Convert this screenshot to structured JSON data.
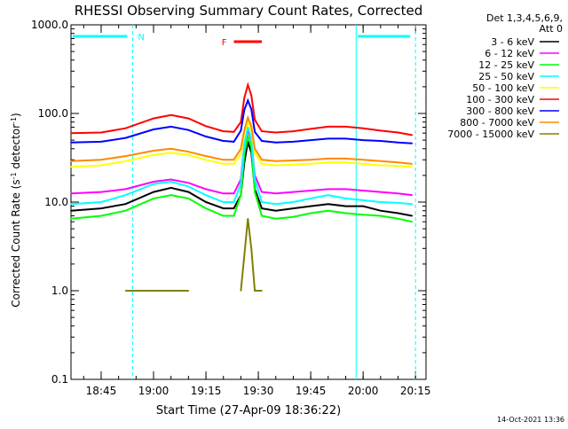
{
  "chart_data": {
    "type": "line",
    "title": "RHESSI Observing Summary Count Rates, Corrected",
    "xlabel": "Start Time (27-Apr-09 18:36:22)",
    "ylabel": "Corrected Count Rate (s⁻¹ detector⁻¹)",
    "ylabel_main": "Corrected Count Rate (s",
    "ylabel_sup1": "-1",
    "ylabel_mid": " detector",
    "ylabel_sup2": "-1",
    "ylabel_end": ")",
    "y_scale": "log",
    "ylim": [
      0.1,
      1000
    ],
    "xlim": [
      "18:36:22",
      "20:18:00"
    ],
    "yticks": [
      {
        "value": 0.1,
        "label": "0.1"
      },
      {
        "value": 1,
        "label": "1.0"
      },
      {
        "value": 10,
        "label": "10.0"
      },
      {
        "value": 100,
        "label": "100.0"
      },
      {
        "value": 1000,
        "label": "1000.0"
      }
    ],
    "xticks": [
      {
        "value": "18:45",
        "label": "18:45"
      },
      {
        "value": "19:00",
        "label": "19:00"
      },
      {
        "value": "19:15",
        "label": "19:15"
      },
      {
        "value": "19:30",
        "label": "19:30"
      },
      {
        "value": "19:45",
        "label": "19:45"
      },
      {
        "value": "20:00",
        "label": "20:00"
      },
      {
        "value": "20:15",
        "label": "20:15"
      }
    ],
    "legend_header": [
      "Det 1,3,4,5,6,9,",
      "Att 0"
    ],
    "legend_position": "right",
    "series": [
      {
        "name": "3 - 6 keV",
        "color": "#000000",
        "x": [
          "18:36:22",
          "18:45",
          "18:52",
          "19:00",
          "19:05",
          "19:10",
          "19:15",
          "19:20",
          "19:23",
          "19:25",
          "19:26",
          "19:27",
          "19:28",
          "19:29",
          "19:31",
          "19:35",
          "19:40",
          "19:45",
          "19:50",
          "19:55",
          "20:00",
          "20:05",
          "20:10",
          "20:14"
        ],
        "values": [
          8,
          8.5,
          9.5,
          13,
          14.5,
          13,
          10,
          8.5,
          8.5,
          12,
          28,
          48,
          36,
          14,
          8.5,
          8,
          8.5,
          9,
          9.5,
          9,
          9,
          8,
          7.5,
          7
        ]
      },
      {
        "name": "6 - 12 keV",
        "color": "#ff00ff",
        "x": [
          "18:36:22",
          "18:45",
          "18:52",
          "19:00",
          "19:05",
          "19:10",
          "19:15",
          "19:20",
          "19:23",
          "19:25",
          "19:26",
          "19:27",
          "19:28",
          "19:29",
          "19:31",
          "19:35",
          "19:40",
          "19:45",
          "19:50",
          "19:55",
          "20:00",
          "20:05",
          "20:10",
          "20:14"
        ],
        "values": [
          12.5,
          13,
          14,
          17,
          18,
          16.5,
          14,
          12.5,
          12.5,
          18,
          45,
          65,
          50,
          20,
          13,
          12.5,
          13,
          13.5,
          14,
          14,
          13.5,
          13,
          12.5,
          12
        ]
      },
      {
        "name": "12 - 25 keV",
        "color": "#00ff00",
        "x": [
          "18:36:22",
          "18:45",
          "18:52",
          "19:00",
          "19:05",
          "19:10",
          "19:15",
          "19:20",
          "19:23",
          "19:25",
          "19:26",
          "19:27",
          "19:28",
          "19:29",
          "19:31",
          "19:35",
          "19:40",
          "19:45",
          "19:50",
          "19:55",
          "20:00",
          "20:05",
          "20:10",
          "20:14"
        ],
        "values": [
          6.5,
          7,
          8,
          11,
          12,
          11,
          8.5,
          7,
          7,
          12,
          35,
          55,
          42,
          13,
          7,
          6.5,
          6.8,
          7.5,
          8,
          7.5,
          7.2,
          7,
          6.5,
          6
        ]
      },
      {
        "name": "25 - 50 keV",
        "color": "#00ffff",
        "x": [
          "18:36:22",
          "18:45",
          "18:52",
          "19:00",
          "19:05",
          "19:10",
          "19:15",
          "19:20",
          "19:23",
          "19:25",
          "19:26",
          "19:27",
          "19:28",
          "19:29",
          "19:31",
          "19:35",
          "19:40",
          "19:45",
          "19:50",
          "19:55",
          "20:00",
          "20:05",
          "20:10",
          "20:14"
        ],
        "values": [
          9.5,
          10,
          12,
          16,
          17,
          15,
          12,
          10,
          10,
          16,
          45,
          70,
          52,
          18,
          10,
          9.5,
          10,
          11,
          12,
          11,
          10.5,
          10,
          9.8,
          9.5
        ]
      },
      {
        "name": "50 - 100 keV",
        "color": "#ffff00",
        "x": [
          "18:36:22",
          "18:45",
          "18:52",
          "19:00",
          "19:05",
          "19:10",
          "19:15",
          "19:20",
          "19:23",
          "19:25",
          "19:26",
          "19:27",
          "19:28",
          "19:29",
          "19:31",
          "19:35",
          "19:40",
          "19:45",
          "19:50",
          "19:55",
          "20:00",
          "20:05",
          "20:10",
          "20:14"
        ],
        "values": [
          25,
          26,
          29,
          34,
          36,
          34,
          30,
          27,
          27,
          35,
          60,
          80,
          65,
          36,
          27,
          26,
          26.5,
          27,
          28,
          28,
          27,
          26,
          25.5,
          25
        ]
      },
      {
        "name": "100 - 300 keV",
        "color": "#ff0000",
        "x": [
          "18:36:22",
          "18:45",
          "18:52",
          "19:00",
          "19:05",
          "19:10",
          "19:15",
          "19:20",
          "19:23",
          "19:25",
          "19:26",
          "19:27",
          "19:28",
          "19:29",
          "19:31",
          "19:35",
          "19:40",
          "19:45",
          "19:50",
          "19:55",
          "20:00",
          "20:05",
          "20:10",
          "20:14"
        ],
        "values": [
          60,
          61,
          68,
          88,
          96,
          88,
          72,
          63,
          62,
          80,
          150,
          210,
          160,
          85,
          63,
          61,
          63,
          67,
          71,
          71,
          68,
          64,
          61,
          57
        ]
      },
      {
        "name": "300 - 800 keV",
        "color": "#0000ff",
        "x": [
          "18:36:22",
          "18:45",
          "18:52",
          "19:00",
          "19:05",
          "19:10",
          "19:15",
          "19:20",
          "19:23",
          "19:25",
          "19:26",
          "19:27",
          "19:28",
          "19:29",
          "19:31",
          "19:35",
          "19:40",
          "19:45",
          "19:50",
          "19:55",
          "20:00",
          "20:05",
          "20:10",
          "20:14"
        ],
        "values": [
          47,
          48,
          53,
          66,
          71,
          65,
          55,
          49,
          48,
          64,
          110,
          140,
          112,
          62,
          49,
          47,
          48,
          50,
          52,
          52,
          50,
          49,
          47,
          46
        ]
      },
      {
        "name": "800 - 7000 keV",
        "color": "#ff8800",
        "x": [
          "18:36:22",
          "18:45",
          "18:52",
          "19:00",
          "19:05",
          "19:10",
          "19:15",
          "19:20",
          "19:23",
          "19:25",
          "19:26",
          "19:27",
          "19:28",
          "19:29",
          "19:31",
          "19:35",
          "19:40",
          "19:45",
          "19:50",
          "19:55",
          "20:00",
          "20:05",
          "20:10",
          "20:14"
        ],
        "values": [
          29,
          30,
          33,
          38,
          40,
          37,
          33,
          30,
          30,
          40,
          65,
          90,
          72,
          40,
          30,
          29,
          29.5,
          30,
          31,
          31,
          30,
          29,
          28,
          27
        ]
      },
      {
        "name": "7000 - 15000 keV",
        "color": "#808000",
        "x": [
          "18:36:22",
          "18:45",
          "18:52",
          "19:00",
          "19:05",
          "19:10",
          "19:15",
          "19:20",
          "19:23",
          "19:25",
          "19:26",
          "19:27",
          "19:28",
          "19:29",
          "19:31",
          "19:35",
          "19:40",
          "19:45",
          "19:50",
          "19:55",
          "20:00",
          "20:05",
          "20:10",
          "20:14"
        ],
        "values": [
          null,
          null,
          1.0,
          1.0,
          1.0,
          1.0,
          null,
          null,
          null,
          1.0,
          2.5,
          6.5,
          3.0,
          1.0,
          1.0,
          null,
          null,
          null,
          null,
          null,
          null,
          null,
          null,
          null
        ]
      }
    ],
    "annotations": [
      {
        "label": "N",
        "color": "#00ffff",
        "x_start": "18:36:22",
        "x_end": "18:54"
      },
      {
        "label": "",
        "color": "#00ffff",
        "x_start": "19:58",
        "x_end": "20:15"
      },
      {
        "label": "F",
        "color": "#ff0000",
        "x_start": "19:23",
        "x_end": "19:31"
      }
    ],
    "vertical_lines": [
      {
        "x": "18:54",
        "color": "#00ffff",
        "style": "dashed"
      },
      {
        "x": "19:58",
        "color": "#00ffff",
        "style": "solid"
      },
      {
        "x": "20:15",
        "color": "#00ffff",
        "style": "dashed"
      }
    ],
    "footer_timestamp": "14-Oct-2021 13:36",
    "background": "#ffffff",
    "axis_color": "#000000",
    "grid": false
  }
}
